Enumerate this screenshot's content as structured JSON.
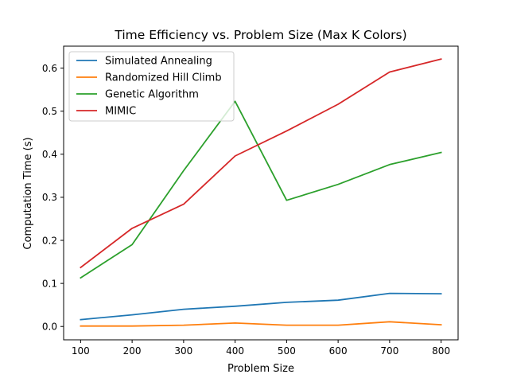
{
  "chart_data": {
    "type": "line",
    "title": "Time Efficiency vs. Problem Size (Max K Colors)",
    "xlabel": "Problem Size",
    "ylabel": "Computation Time (s)",
    "x": [
      100,
      200,
      300,
      400,
      500,
      600,
      700,
      800
    ],
    "xlim": [
      67,
      833
    ],
    "ylim": [
      -0.031,
      0.651
    ],
    "xticks": [
      100,
      200,
      300,
      400,
      500,
      600,
      700,
      800
    ],
    "yticks": [
      0.0,
      0.1,
      0.2,
      0.3,
      0.4,
      0.5,
      0.6
    ],
    "ytick_labels": [
      "0.0",
      "0.1",
      "0.2",
      "0.3",
      "0.4",
      "0.5",
      "0.6"
    ],
    "grid": false,
    "legend_position": "top-left",
    "series": [
      {
        "name": "Simulated Annealing",
        "color": "#1f77b4",
        "values": [
          0.016,
          0.027,
          0.04,
          0.047,
          0.056,
          0.061,
          0.077,
          0.076
        ]
      },
      {
        "name": "Randomized Hill Climb",
        "color": "#ff7f0e",
        "values": [
          0.001,
          0.001,
          0.003,
          0.008,
          0.003,
          0.003,
          0.011,
          0.004
        ]
      },
      {
        "name": "Genetic Algorithm",
        "color": "#2ca02c",
        "values": [
          0.113,
          0.19,
          0.362,
          0.523,
          0.293,
          0.33,
          0.376,
          0.404
        ]
      },
      {
        "name": "MIMIC",
        "color": "#d62728",
        "values": [
          0.137,
          0.228,
          0.284,
          0.396,
          0.454,
          0.516,
          0.591,
          0.621
        ]
      }
    ]
  }
}
